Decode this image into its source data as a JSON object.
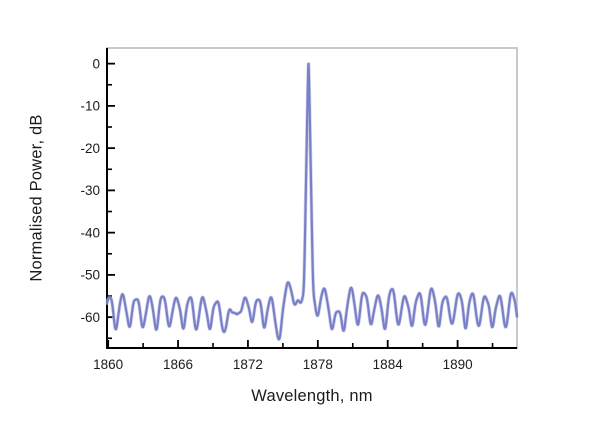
{
  "figure": {
    "background": "#ffffff",
    "description": "Optical spectrum: normalised power versus wavelength with single laser peak over rippled noise floor"
  },
  "style": {
    "line_color": "#7a80c6",
    "line_halo_color": "#aab0de",
    "axis_color": "#000000",
    "frame_top_right_color": "#c9c9c9",
    "text_color": "#1c1c1c"
  },
  "chart_data": {
    "type": "line",
    "title": "",
    "xlabel": "Wavelength, nm",
    "ylabel": "Normalised Power, dB",
    "xlim": [
      1859.9,
      1895.1
    ],
    "ylim": [
      -67.3,
      3.7
    ],
    "grid": "off",
    "legend": "none",
    "x_major_ticks": [
      1860,
      1866,
      1872,
      1878,
      1884,
      1890
    ],
    "x_minor_ticks": [
      1863,
      1869,
      1875,
      1881,
      1887,
      1893
    ],
    "y_major_ticks": [
      0,
      -10,
      -20,
      -30,
      -40,
      -50,
      -60
    ],
    "y_minor_ticks": [
      -5,
      -15,
      -25,
      -35,
      -45,
      -55,
      -65
    ],
    "series": [
      {
        "name": "normalised power spectrum",
        "model": "ripple-comb-plus-laser-peak",
        "noise_floor_db": -66.0,
        "ripple_sigma_nm": 0.24,
        "ripple_period_nm": 1.15,
        "main_peak": {
          "wavelength_nm": 1877.2,
          "power_db": 0,
          "slope_db_per_nm": 150,
          "apex_round_nm": 0.03,
          "pedestal_db": -53,
          "pedestal_sigma_nm": 0.55
        },
        "ripples": [
          {
            "x": 1858.95,
            "h": -56.0
          },
          {
            "x": 1860.1,
            "h": -55.7
          },
          {
            "x": 1861.25,
            "h": -55.4
          },
          {
            "x": 1862.4,
            "h": -55.6
          },
          {
            "x": 1863.55,
            "h": -55.9
          },
          {
            "x": 1864.7,
            "h": -55.4
          },
          {
            "x": 1865.85,
            "h": -55.7
          },
          {
            "x": 1867.0,
            "h": -55.9
          },
          {
            "x": 1868.15,
            "h": -56.1
          },
          {
            "x": 1869.3,
            "h": -56.4
          },
          {
            "x": 1870.45,
            "h": -59.6
          },
          {
            "x": 1871.05,
            "h": -59.9
          },
          {
            "x": 1871.8,
            "h": -55.7
          },
          {
            "x": 1872.85,
            "h": -55.9
          },
          {
            "x": 1873.95,
            "h": -56.3
          },
          {
            "x": 1875.45,
            "h": -52.0
          },
          {
            "x": 1876.2,
            "h": -57.0
          },
          {
            "x": 1878.55,
            "h": -53.6
          },
          {
            "x": 1879.7,
            "h": -59.0
          },
          {
            "x": 1880.85,
            "h": -53.9
          },
          {
            "x": 1882.0,
            "h": -54.3
          },
          {
            "x": 1883.15,
            "h": -55.3
          },
          {
            "x": 1884.35,
            "h": -53.8
          },
          {
            "x": 1885.5,
            "h": -55.4
          },
          {
            "x": 1886.65,
            "h": -54.7
          },
          {
            "x": 1887.8,
            "h": -54.0
          },
          {
            "x": 1888.95,
            "h": -55.2
          },
          {
            "x": 1890.1,
            "h": -54.7
          },
          {
            "x": 1891.25,
            "h": -55.1
          },
          {
            "x": 1892.4,
            "h": -55.3
          },
          {
            "x": 1893.55,
            "h": -55.6
          },
          {
            "x": 1894.7,
            "h": -54.9
          },
          {
            "x": 1895.85,
            "h": -55.5
          }
        ]
      }
    ]
  }
}
